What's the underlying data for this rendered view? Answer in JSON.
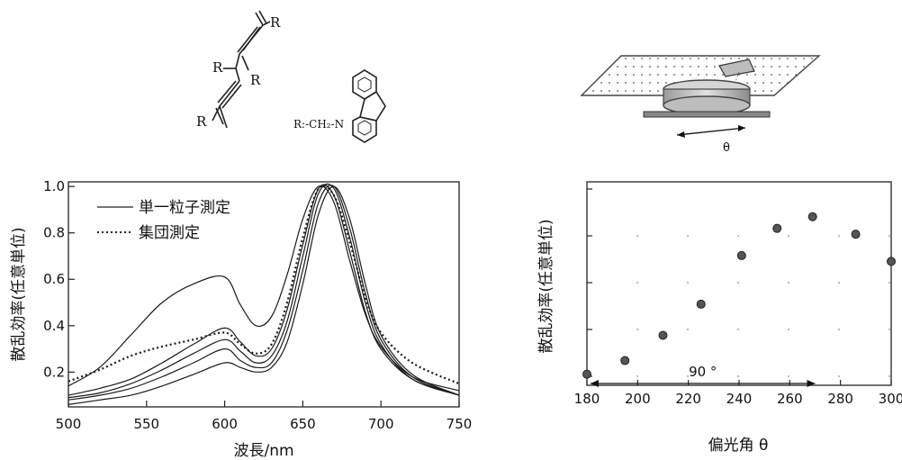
{
  "structure": {
    "r_labels": [
      "R",
      "R",
      "R",
      "R"
    ],
    "substituent_label": "R:-CH₂-N"
  },
  "setup": {
    "angle_symbol": "θ"
  },
  "chart_data": [
    {
      "type": "line",
      "xlabel": "波長/nm",
      "ylabel": "散乱効率(任意単位)",
      "xlim": [
        500,
        750
      ],
      "ylim": [
        0.05,
        1.02
      ],
      "xticks": [
        500,
        550,
        600,
        650,
        700,
        750
      ],
      "xtick_labels": [
        "500",
        "550",
        "600",
        "650",
        "700",
        "750"
      ],
      "yticks": [
        0.2,
        0.4,
        0.6,
        0.8,
        1.0
      ],
      "ytick_labels": [
        "0.2",
        "0.4",
        "0.6",
        "0.8",
        "1.0"
      ],
      "legend": {
        "position": "top-left",
        "entries": [
          {
            "label": "単一粒子測定",
            "style": "solid"
          },
          {
            "label": "集団測定",
            "style": "dotted"
          }
        ]
      },
      "series": [
        {
          "style": "solid",
          "x": [
            500,
            520,
            540,
            560,
            580,
            600,
            610,
            620,
            630,
            640,
            650,
            660,
            670,
            680,
            690,
            700,
            720,
            750
          ],
          "values": [
            0.14,
            0.22,
            0.36,
            0.5,
            0.58,
            0.61,
            0.49,
            0.4,
            0.44,
            0.62,
            0.86,
            1.0,
            0.93,
            0.68,
            0.45,
            0.31,
            0.18,
            0.12
          ]
        },
        {
          "style": "solid",
          "x": [
            500,
            520,
            540,
            560,
            580,
            600,
            610,
            620,
            630,
            640,
            650,
            660,
            670,
            680,
            690,
            700,
            720,
            750
          ],
          "values": [
            0.1,
            0.13,
            0.17,
            0.24,
            0.32,
            0.39,
            0.33,
            0.27,
            0.3,
            0.47,
            0.75,
            0.99,
            0.96,
            0.72,
            0.46,
            0.3,
            0.17,
            0.1
          ]
        },
        {
          "style": "solid",
          "x": [
            500,
            520,
            540,
            560,
            580,
            600,
            610,
            620,
            630,
            640,
            650,
            660,
            670,
            680,
            690,
            700,
            720,
            750
          ],
          "values": [
            0.09,
            0.11,
            0.15,
            0.21,
            0.28,
            0.34,
            0.29,
            0.24,
            0.27,
            0.42,
            0.7,
            0.97,
            0.99,
            0.78,
            0.5,
            0.32,
            0.17,
            0.1
          ]
        },
        {
          "style": "solid",
          "x": [
            500,
            520,
            540,
            560,
            580,
            600,
            610,
            620,
            630,
            640,
            650,
            660,
            670,
            680,
            690,
            700,
            720,
            750
          ],
          "values": [
            0.08,
            0.1,
            0.13,
            0.18,
            0.24,
            0.3,
            0.25,
            0.22,
            0.24,
            0.38,
            0.64,
            0.93,
            1.0,
            0.82,
            0.54,
            0.34,
            0.18,
            0.1
          ]
        },
        {
          "style": "solid",
          "x": [
            500,
            520,
            540,
            560,
            580,
            600,
            610,
            620,
            630,
            640,
            650,
            660,
            670,
            680,
            690,
            700,
            720,
            750
          ],
          "values": [
            0.06,
            0.08,
            0.1,
            0.14,
            0.19,
            0.24,
            0.22,
            0.2,
            0.22,
            0.33,
            0.58,
            0.88,
            1.0,
            0.86,
            0.58,
            0.36,
            0.19,
            0.1
          ]
        },
        {
          "style": "dotted",
          "x": [
            500,
            520,
            540,
            560,
            580,
            600,
            610,
            620,
            630,
            640,
            650,
            660,
            670,
            680,
            690,
            700,
            720,
            750
          ],
          "values": [
            0.16,
            0.21,
            0.27,
            0.31,
            0.34,
            0.37,
            0.32,
            0.28,
            0.32,
            0.5,
            0.78,
            0.99,
            0.96,
            0.76,
            0.52,
            0.37,
            0.24,
            0.15
          ]
        }
      ]
    },
    {
      "type": "scatter",
      "xlabel": "偏光角 θ",
      "ylabel": "散乱効率(任意単位)",
      "xlim": [
        180,
        300
      ],
      "ylim": [
        0,
        1
      ],
      "xticks": [
        180,
        200,
        220,
        240,
        260,
        280,
        300
      ],
      "xtick_labels": [
        "180",
        "200",
        "220",
        "240",
        "260",
        "280",
        "300"
      ],
      "annotation": {
        "text": "90 °",
        "from": 180,
        "to": 270
      },
      "x": [
        180,
        195,
        210,
        225,
        241,
        255,
        269,
        286,
        300
      ],
      "values": [
        0.02,
        0.09,
        0.22,
        0.38,
        0.63,
        0.77,
        0.83,
        0.74,
        0.6
      ]
    }
  ]
}
